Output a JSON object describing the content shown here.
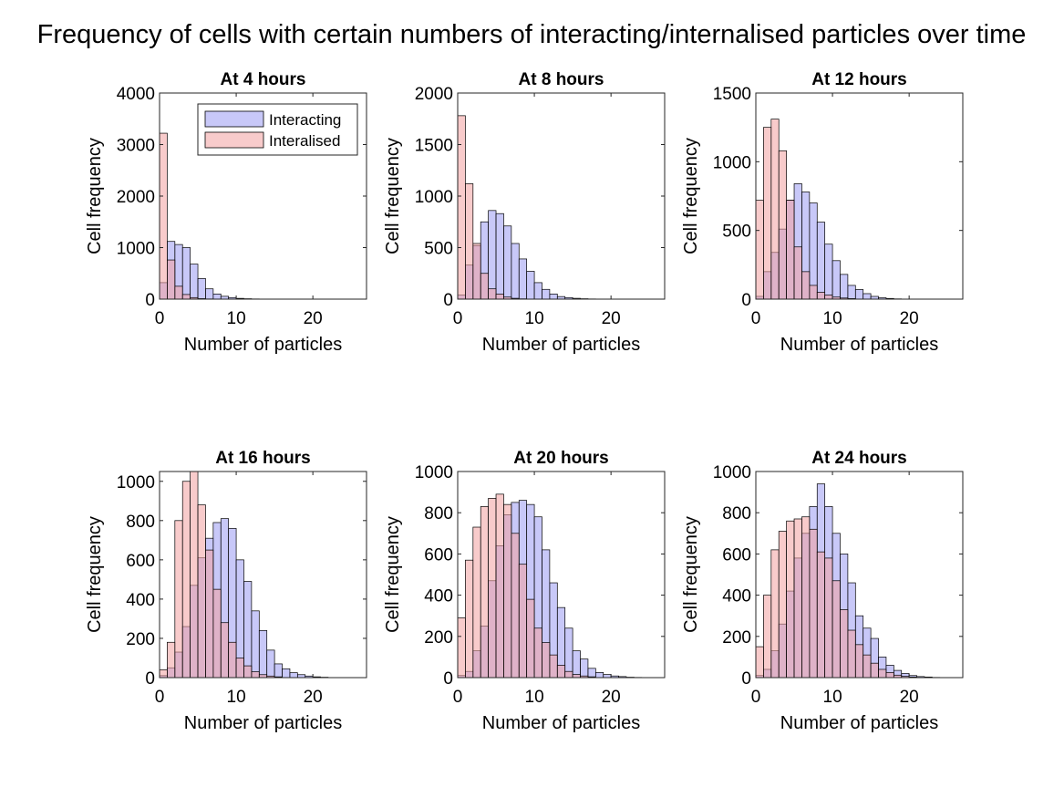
{
  "figure_title": "Frequency of cells with certain numbers of interacting/internalised particles over time",
  "colors": {
    "interacting": "#9b9bf2",
    "internalised": "#f2a0a0",
    "edge": "#000000"
  },
  "legend": {
    "position": "top-right",
    "items": [
      "Interacting",
      "Interalised"
    ]
  },
  "chart_data": [
    {
      "type": "bar",
      "title": "At 4 hours",
      "xlabel": "Number of particles",
      "ylabel": "Cell frequency",
      "xlim": [
        0,
        27
      ],
      "ylim": [
        0,
        4000
      ],
      "yticks": [
        0,
        1000,
        2000,
        3000,
        4000
      ],
      "xticks": [
        0,
        10,
        20
      ],
      "legend": true,
      "series": [
        {
          "name": "Interacting",
          "values": [
            320,
            1120,
            1060,
            1000,
            680,
            400,
            200,
            100,
            55,
            30,
            15,
            8,
            4
          ]
        },
        {
          "name": "Interalised",
          "values": [
            3220,
            760,
            250,
            90,
            30,
            10,
            4,
            2
          ]
        }
      ]
    },
    {
      "type": "bar",
      "title": "At 8 hours",
      "xlabel": "Number of particles",
      "ylabel": "Cell frequency",
      "xlim": [
        0,
        27
      ],
      "ylim": [
        0,
        2000
      ],
      "yticks": [
        0,
        500,
        1000,
        1500,
        2000
      ],
      "xticks": [
        0,
        10,
        20
      ],
      "legend": false,
      "series": [
        {
          "name": "Interacting",
          "values": [
            40,
            330,
            520,
            750,
            860,
            830,
            710,
            540,
            390,
            270,
            160,
            95,
            50,
            25,
            15,
            8,
            4,
            2
          ]
        },
        {
          "name": "Interalised",
          "values": [
            1780,
            1120,
            540,
            250,
            100,
            50,
            20,
            8,
            3
          ]
        }
      ]
    },
    {
      "type": "bar",
      "title": "At 12 hours",
      "xlabel": "Number of particles",
      "ylabel": "Cell frequency",
      "xlim": [
        0,
        27
      ],
      "ylim": [
        0,
        1500
      ],
      "yticks": [
        0,
        500,
        1000,
        1500
      ],
      "xticks": [
        0,
        10,
        20
      ],
      "legend": false,
      "series": [
        {
          "name": "Interacting",
          "values": [
            20,
            200,
            340,
            510,
            720,
            840,
            780,
            700,
            560,
            400,
            280,
            180,
            100,
            70,
            40,
            20,
            10,
            5,
            2
          ]
        },
        {
          "name": "Interalised",
          "values": [
            720,
            1250,
            1310,
            1080,
            720,
            380,
            200,
            100,
            50,
            30,
            15,
            8,
            4
          ]
        }
      ]
    },
    {
      "type": "bar",
      "title": "At 16 hours",
      "xlabel": "Number of particles",
      "ylabel": "Cell frequency",
      "xlim": [
        0,
        27
      ],
      "ylim": [
        0,
        1050
      ],
      "yticks": [
        0,
        200,
        400,
        600,
        800,
        1000
      ],
      "xticks": [
        0,
        10,
        20
      ],
      "legend": false,
      "series": [
        {
          "name": "Interacting",
          "values": [
            10,
            50,
            130,
            260,
            470,
            610,
            710,
            790,
            810,
            760,
            600,
            490,
            340,
            240,
            140,
            70,
            45,
            25,
            15,
            8,
            4,
            2
          ]
        },
        {
          "name": "Interalised",
          "values": [
            40,
            180,
            800,
            1000,
            1060,
            880,
            650,
            450,
            280,
            180,
            100,
            60,
            30,
            15,
            8,
            4
          ]
        }
      ]
    },
    {
      "type": "bar",
      "title": "At 20 hours",
      "xlabel": "Number of particles",
      "ylabel": "Cell frequency",
      "xlim": [
        0,
        27
      ],
      "ylim": [
        0,
        1000
      ],
      "yticks": [
        0,
        200,
        400,
        600,
        800,
        1000
      ],
      "xticks": [
        0,
        10,
        20
      ],
      "legend": false,
      "series": [
        {
          "name": "Interacting",
          "values": [
            10,
            30,
            130,
            250,
            470,
            640,
            790,
            850,
            860,
            840,
            780,
            620,
            460,
            340,
            240,
            130,
            90,
            45,
            25,
            15,
            8,
            5,
            2,
            1
          ]
        },
        {
          "name": "Interalised",
          "values": [
            290,
            570,
            730,
            830,
            870,
            890,
            840,
            700,
            550,
            380,
            240,
            170,
            110,
            60,
            30,
            15,
            8,
            4
          ]
        }
      ]
    },
    {
      "type": "bar",
      "title": "At 24 hours",
      "xlabel": "Number of particles",
      "ylabel": "Cell frequency",
      "xlim": [
        0,
        27
      ],
      "ylim": [
        0,
        1000
      ],
      "yticks": [
        0,
        200,
        400,
        600,
        800,
        1000
      ],
      "xticks": [
        0,
        10,
        20
      ],
      "legend": false,
      "series": [
        {
          "name": "Interacting",
          "values": [
            10,
            40,
            130,
            260,
            420,
            580,
            700,
            830,
            940,
            830,
            700,
            600,
            460,
            300,
            240,
            190,
            100,
            60,
            35,
            20,
            10,
            5,
            3,
            1
          ]
        },
        {
          "name": "Interalised",
          "values": [
            150,
            400,
            620,
            710,
            760,
            770,
            780,
            720,
            610,
            580,
            470,
            330,
            230,
            160,
            110,
            70,
            40,
            25,
            12,
            6,
            3
          ]
        }
      ]
    }
  ]
}
